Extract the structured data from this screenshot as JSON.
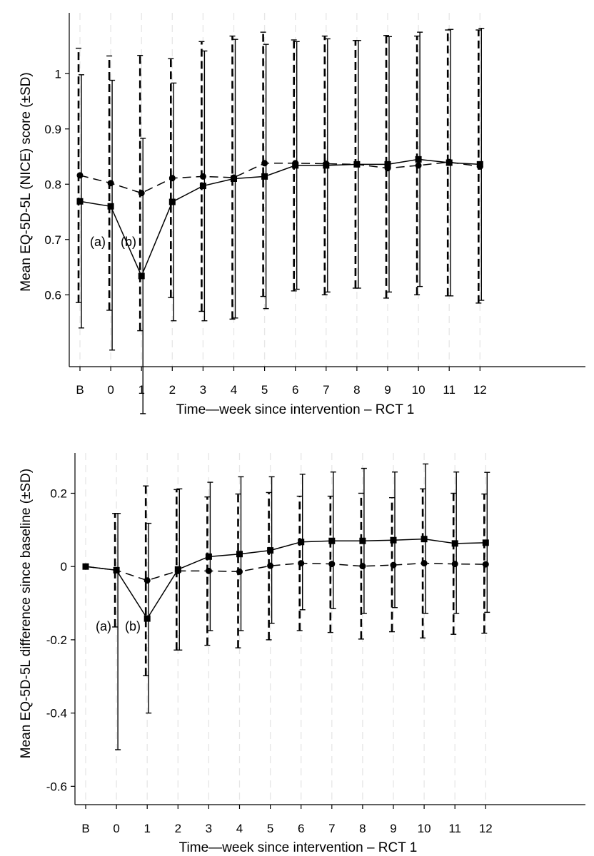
{
  "chart_data": [
    {
      "type": "line",
      "categories": [
        "B",
        "0",
        "1",
        "2",
        "3",
        "4",
        "5",
        "6",
        "7",
        "8",
        "9",
        "10",
        "11",
        "12"
      ],
      "xlabel": "Time—week since intervention – RCT 1",
      "ylabel": "Mean EQ-5D-5L (NICE) score (±SD)",
      "yticks": [
        "0.6",
        "0.7",
        "0.8",
        "0.9",
        "1"
      ],
      "ylim": [
        0.47,
        1.11
      ],
      "annotations": [
        "(a)",
        "(b)"
      ],
      "series": [
        {
          "line_style": "solid",
          "marker": "square",
          "values": [
            0.769,
            0.76,
            0.634,
            0.768,
            0.797,
            0.81,
            0.814,
            0.834,
            0.834,
            0.836,
            0.836,
            0.845,
            0.839,
            0.836
          ],
          "sd_low": [
            0.54,
            0.5,
            0.385,
            0.553,
            0.553,
            0.558,
            0.575,
            0.61,
            0.605,
            0.612,
            0.605,
            0.615,
            0.598,
            0.59
          ],
          "sd_high": [
            0.998,
            0.988,
            0.883,
            0.983,
            1.041,
            1.062,
            1.053,
            1.058,
            1.063,
            1.06,
            1.067,
            1.075,
            1.08,
            1.082
          ]
        },
        {
          "line_style": "dashed",
          "marker": "circle",
          "values": [
            0.816,
            0.802,
            0.784,
            0.811,
            0.814,
            0.812,
            0.838,
            0.838,
            0.837,
            0.836,
            0.829,
            0.834,
            0.84,
            0.832
          ],
          "sd_low": [
            0.586,
            0.572,
            0.535,
            0.595,
            0.57,
            0.556,
            0.597,
            0.607,
            0.6,
            0.612,
            0.594,
            0.6,
            0.598,
            0.585
          ],
          "sd_high": [
            1.046,
            1.032,
            1.033,
            1.027,
            1.058,
            1.068,
            1.075,
            1.061,
            1.068,
            1.06,
            1.069,
            1.068,
            1.079,
            1.079
          ]
        }
      ]
    },
    {
      "type": "line",
      "categories": [
        "B",
        "0",
        "1",
        "2",
        "3",
        "4",
        "5",
        "6",
        "7",
        "8",
        "9",
        "10",
        "11",
        "12"
      ],
      "xlabel": "Time—week since intervention – RCT 1",
      "ylabel": "Mean EQ-5D-5L difference since baseline (±SD)",
      "yticks": [
        "-0.6",
        "-0.4",
        "-0.2",
        "0",
        "0.2"
      ],
      "ylim": [
        -0.65,
        0.31
      ],
      "annotations": [
        "(a)",
        "(b)"
      ],
      "series": [
        {
          "line_style": "solid",
          "marker": "square",
          "values": [
            0,
            -0.01,
            -0.142,
            -0.008,
            0.027,
            0.034,
            0.044,
            0.067,
            0.07,
            0.07,
            0.072,
            0.075,
            0.063,
            0.065
          ],
          "sd_low": [
            0,
            -0.5,
            -0.4,
            -0.228,
            -0.175,
            -0.175,
            -0.155,
            -0.118,
            -0.115,
            -0.128,
            -0.112,
            -0.128,
            -0.128,
            -0.125
          ],
          "sd_high": [
            0,
            0.145,
            0.118,
            0.212,
            0.23,
            0.245,
            0.245,
            0.252,
            0.258,
            0.268,
            0.258,
            0.28,
            0.258,
            0.257
          ]
        },
        {
          "line_style": "dashed",
          "marker": "circle",
          "values": [
            0,
            -0.01,
            -0.038,
            -0.012,
            -0.012,
            -0.014,
            0.002,
            0.009,
            0.007,
            0.001,
            0.004,
            0.009,
            0.007,
            0.006
          ],
          "sd_low": [
            0,
            -0.165,
            -0.298,
            -0.228,
            -0.215,
            -0.222,
            -0.2,
            -0.175,
            -0.18,
            -0.198,
            -0.178,
            -0.195,
            -0.185,
            -0.182
          ],
          "sd_high": [
            0,
            0.145,
            0.22,
            0.21,
            0.19,
            0.198,
            0.202,
            0.192,
            0.192,
            0.2,
            0.188,
            0.212,
            0.2,
            0.198
          ]
        }
      ]
    }
  ]
}
